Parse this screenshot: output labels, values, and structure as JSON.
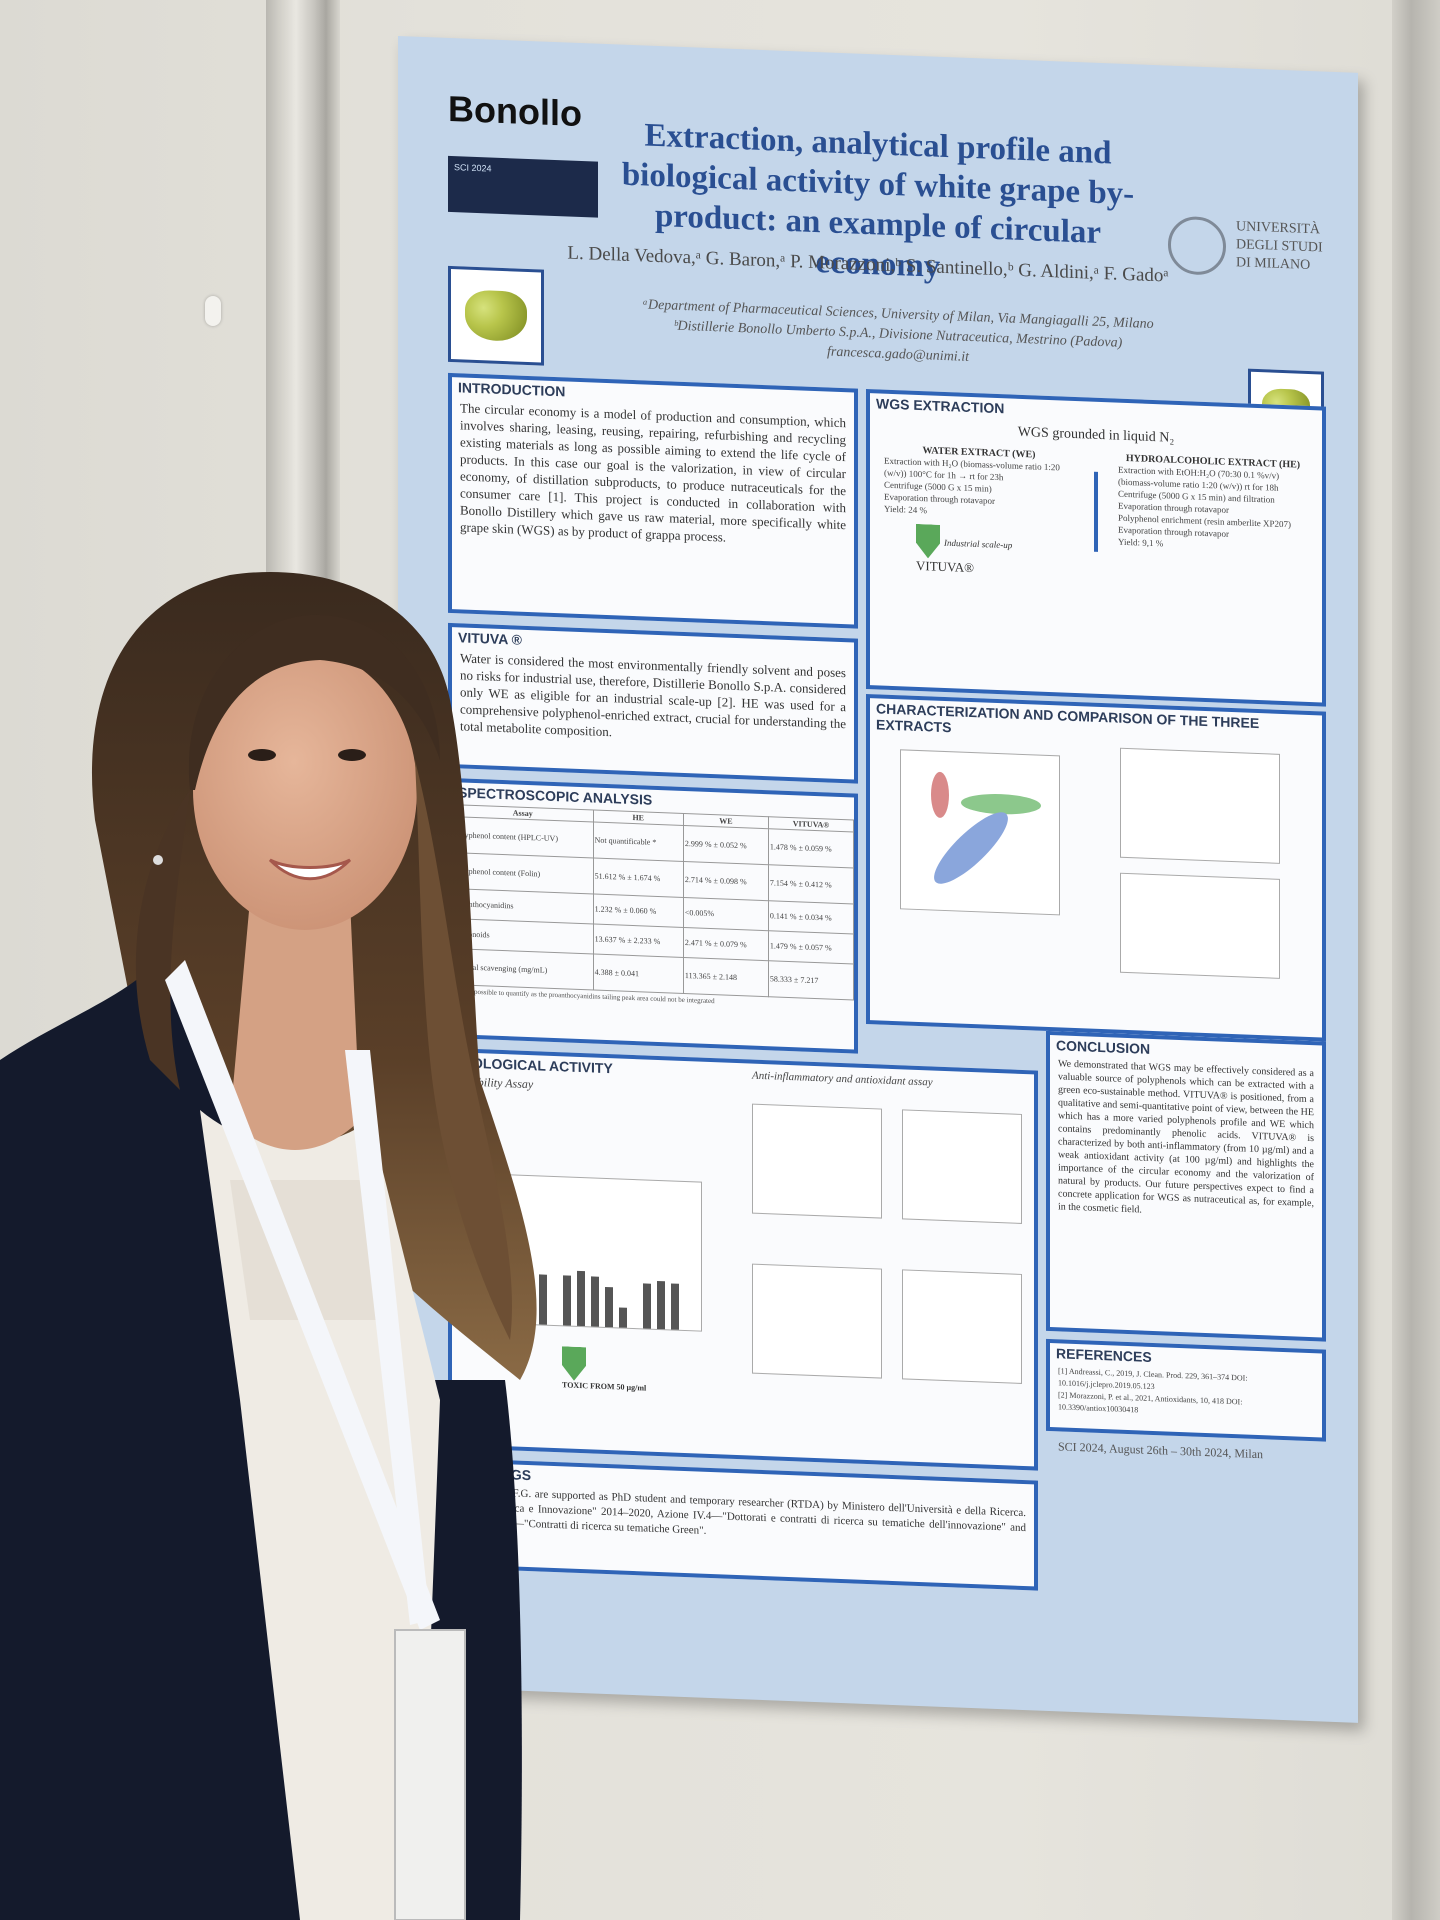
{
  "poster": {
    "logo_text": "Bonollo",
    "title": "Extraction, analytical profile and biological activity of white grape by-product: an example of circular economy",
    "authors": "L. Della Vedova,ᵃ G. Baron,ᵃ P. Morazzoni,ᵇ S. Santinello,ᵇ G. Aldini,ᵃ F. Gadoᵃ",
    "affiliation_a": "ᵃDepartment of Pharmaceutical Sciences, University of Milan, Via Mangiagalli 25, Milano",
    "affiliation_b": "ᵇDistillerie Bonollo Umberto S.p.A., Divisione Nutraceutica, Mestrino (Padova)",
    "email": "francesca.gado@unimi.it",
    "university": "UNIVERSITÀ DEGLI STUDI DI MILANO",
    "introduction": {
      "heading": "INTRODUCTION",
      "text": "The circular economy is a model of production and consumption, which involves sharing, leasing, reusing, repairing, refurbishing and recycling existing materials as long as possible aiming to extend the life cycle of products. In this case our goal is the valorization, in view of circular economy, of distillation subproducts, to produce nutraceuticals for the consumer care [1]. This project is conducted in collaboration with Bonollo Distillery which gave us raw material, more specifically white grape skin (WGS) as by product of grappa process."
    },
    "vituva": {
      "heading": "VITUVA ®",
      "text": "Water is considered the most environmentally friendly solvent and poses no risks for industrial use, therefore, Distillerie Bonollo S.p.A. considered only WE as eligible for an industrial scale-up [2]. HE was used for a comprehensive polyphenol-enriched extract, crucial for understanding the total metabolite composition."
    },
    "wgs": {
      "heading": "WGS EXTRACTION",
      "root": "WGS grounded in liquid N₂",
      "water_heading": "WATER EXTRACT (WE)",
      "water_steps": [
        "Extraction with H₂O (biomass-volume ratio 1:20 (w/v)) 100°C for 1h → rt for 23h",
        "Centrifuge (5000 G x 15 min)",
        "Evaporation through rotavapor",
        "Yield: 24 %"
      ],
      "hydro_heading": "HYDROALCOHOLIC EXTRACT (HE)",
      "hydro_steps": [
        "Extraction with EtOH:H₂O (70:30 0.1 %v/v) (biomass-volume ratio 1:20 (w/v)) rt for 18h",
        "Centrifuge (5000 G x 15 min) and filtration",
        "Evaporation through rotavapor",
        "Polyphenol enrichment (resin amberlite XP207)",
        "Evaporation through rotavapor",
        "Yield: 9,1 %"
      ],
      "scaleup": "Industrial scale-up",
      "product": "VITUVA®"
    },
    "characterization": {
      "heading": "CHARACTERIZATION AND COMPARISON OF THE THREE EXTRACTS"
    },
    "spectroscopic": {
      "heading": "SPECTROSCOPIC ANALYSIS",
      "columns": [
        "Assay",
        "HE",
        "WE",
        "VITUVA®"
      ],
      "rows": [
        [
          "Polyphenol content (HPLC-UV)",
          "Not quantificable *",
          "2.999 % ± 0.052 %",
          "1.478 % ± 0.059 %"
        ],
        [
          "Polyphenol content (Folin)",
          "51.612 % ± 1.674 %",
          "2.714 % ± 0.098 %",
          "7.154 % ± 0.412 %"
        ],
        [
          "Proanthocyanidins",
          "1.232 % ± 0.060 %",
          "<0.005%",
          "0.141 % ± 0.034 %"
        ],
        [
          "Flavonoids",
          "13.637 % ± 2.233 %",
          "2.471 % ± 0.079 %",
          "1.479 % ± 0.057 %"
        ],
        [
          "Radical scavenging (mg/mL)",
          "4.388 ± 0.041",
          "113.365 ± 2.148",
          "58.333 ± 7.217"
        ]
      ],
      "note": "* not possible to quantify as the proanthocyanidins tailing peak area could not be integrated"
    },
    "biological": {
      "heading": "BIOLOGICAL ACTIVITY",
      "sub1": "Viability Assay",
      "sub2": "Anti-inflammatory and antioxidant assay",
      "toxic": "TOXIC FROM 50 µg/ml"
    },
    "conclusion": {
      "heading": "CONCLUSION",
      "text": "We demonstrated that WGS may be effectively considered as a valuable source of polyphenols which can be extracted with a green eco-sustainable method. VITUVA® is positioned, from a qualitative and semi-quantitative point of view, between the HE which has a more varied polyphenols profile and WE which contains predominantly phenolic acids. VITUVA® is characterized by both anti-inflammatory (from 10 µg/ml) and a weak antioxidant activity (at 100 µg/ml) and highlights the importance of the circular economy and the valorization of natural by products. Our future perspectives expect to find a concrete application for WGS as nutraceutical as, for example, in the cosmetic field."
    },
    "references": {
      "heading": "REFERENCES",
      "items": [
        "[1] Andreassi, C., 2019, J. Clean. Prod. 229, 361–374 DOI: 10.1016/j.jclepro.2019.05.123",
        "[2] Morazzoni, P. et al., 2021, Antioxidants, 10, 418 DOI: 10.3390/antiox10030418"
      ]
    },
    "conference": "SCI 2024, August 26th – 30th 2024, Milan",
    "funding": {
      "heading": "FUNDINGS",
      "text": "L.D.V. and F.G. are supported as PhD student and temporary researcher (RTDA) by Ministero dell'Università e della Ricerca. PON \"Ricerca e Innovazione\" 2014–2020, Azione IV.4—\"Dottorati e contratti di ricerca su tematiche dell'innovazione\" and Azione IV.6—\"Contratti di ricerca su tematiche Green\"."
    }
  },
  "colors": {
    "poster_bg": "#c4d6ea",
    "box_border": "#2f64b7",
    "title": "#2a4f92",
    "jacket": "#141a2c"
  }
}
